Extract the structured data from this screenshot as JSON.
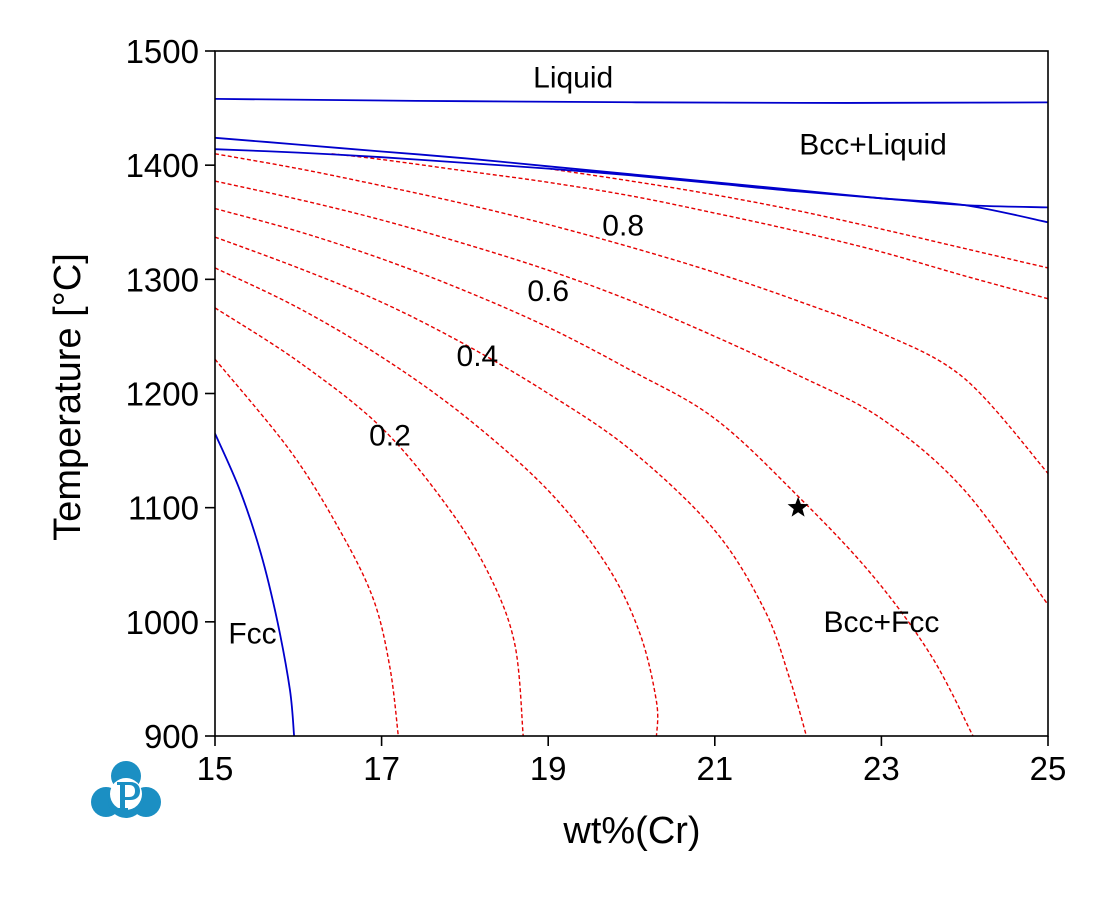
{
  "chart_data": {
    "type": "line",
    "title": "",
    "xlabel": "wt%(Cr)",
    "ylabel": "Temperature [°C]",
    "xlim": [
      15,
      25
    ],
    "ylim": [
      900,
      1500
    ],
    "x_ticks": [
      15,
      17,
      19,
      21,
      23,
      25
    ],
    "y_ticks": [
      900,
      1000,
      1100,
      1200,
      1300,
      1400,
      1500
    ],
    "grid": false,
    "legend": "none",
    "colors": {
      "phase_boundary": "#0000cc",
      "iso_fraction": "#e60000",
      "axes": "#000000"
    },
    "phase_boundaries": [
      {
        "id": "liquidus",
        "points": [
          [
            15,
            1458
          ],
          [
            18,
            1456
          ],
          [
            22,
            1454.5
          ],
          [
            25,
            1455
          ]
        ]
      },
      {
        "id": "solidus-upper",
        "points": [
          [
            15,
            1424
          ],
          [
            16,
            1418
          ],
          [
            17,
            1412
          ],
          [
            18,
            1406
          ],
          [
            19,
            1399
          ],
          [
            20,
            1392
          ],
          [
            21,
            1385
          ],
          [
            22,
            1378
          ],
          [
            23,
            1371
          ],
          [
            24,
            1365
          ],
          [
            25,
            1363
          ]
        ]
      },
      {
        "id": "solidus-lower",
        "points": [
          [
            15,
            1414
          ],
          [
            16,
            1411
          ],
          [
            17,
            1407
          ],
          [
            18,
            1402
          ],
          [
            19,
            1397
          ],
          [
            20,
            1391
          ],
          [
            21,
            1384
          ],
          [
            22,
            1377
          ],
          [
            23,
            1371
          ],
          [
            24,
            1365
          ],
          [
            25,
            1350
          ]
        ]
      },
      {
        "id": "fcc-boundary",
        "points": [
          [
            15,
            1165
          ],
          [
            15.3,
            1115
          ],
          [
            15.55,
            1060
          ],
          [
            15.75,
            1000
          ],
          [
            15.9,
            940
          ],
          [
            15.95,
            900
          ]
        ]
      }
    ],
    "contours": [
      {
        "points": [
          [
            15,
            1230
          ],
          [
            15.9,
            1150
          ],
          [
            16.5,
            1080
          ],
          [
            16.9,
            1020
          ],
          [
            17.1,
            960
          ],
          [
            17.2,
            900
          ]
        ]
      },
      {
        "points": [
          [
            15,
            1275
          ],
          [
            16,
            1228
          ],
          [
            17,
            1170
          ],
          [
            17.8,
            1100
          ],
          [
            18.3,
            1040
          ],
          [
            18.6,
            980
          ],
          [
            18.7,
            900
          ]
        ]
      },
      {
        "points": [
          [
            15,
            1310
          ],
          [
            16,
            1275
          ],
          [
            17,
            1232
          ],
          [
            18,
            1180
          ],
          [
            19,
            1115
          ],
          [
            19.7,
            1050
          ],
          [
            20.1,
            990
          ],
          [
            20.3,
            930
          ],
          [
            20.3,
            900
          ]
        ]
      },
      {
        "points": [
          [
            15,
            1337
          ],
          [
            16,
            1310
          ],
          [
            17,
            1280
          ],
          [
            18,
            1243
          ],
          [
            19,
            1200
          ],
          [
            20,
            1150
          ],
          [
            21,
            1080
          ],
          [
            21.6,
            1010
          ],
          [
            21.9,
            950
          ],
          [
            22.1,
            900
          ]
        ]
      },
      {
        "points": [
          [
            15,
            1362
          ],
          [
            16,
            1342
          ],
          [
            17,
            1318
          ],
          [
            18,
            1290
          ],
          [
            19,
            1258
          ],
          [
            20,
            1220
          ],
          [
            21,
            1178
          ],
          [
            22,
            1110
          ],
          [
            22.9,
            1040
          ],
          [
            23.6,
            970
          ],
          [
            24.1,
            900
          ]
        ]
      },
      {
        "points": [
          [
            15,
            1386
          ],
          [
            16,
            1370
          ],
          [
            17,
            1352
          ],
          [
            18,
            1331
          ],
          [
            19,
            1308
          ],
          [
            20,
            1281
          ],
          [
            21,
            1250
          ],
          [
            22,
            1216
          ],
          [
            23,
            1178
          ],
          [
            24,
            1115
          ],
          [
            25,
            1015
          ]
        ]
      },
      {
        "points": [
          [
            15,
            1410
          ],
          [
            16,
            1397
          ],
          [
            17,
            1382
          ],
          [
            18,
            1366
          ],
          [
            19,
            1348
          ],
          [
            20,
            1328
          ],
          [
            21,
            1306
          ],
          [
            22,
            1281
          ],
          [
            23,
            1253
          ],
          [
            24,
            1213
          ],
          [
            25,
            1130
          ]
        ]
      },
      {
        "points": [
          [
            16.4,
            1410
          ],
          [
            17,
            1405
          ],
          [
            18,
            1395
          ],
          [
            19,
            1385
          ],
          [
            20,
            1373
          ],
          [
            21,
            1358
          ],
          [
            22,
            1342
          ],
          [
            23,
            1324
          ],
          [
            24,
            1303
          ],
          [
            25,
            1283
          ]
        ]
      },
      {
        "points": [
          [
            19,
            1397
          ],
          [
            20,
            1386
          ],
          [
            21,
            1374
          ],
          [
            22,
            1360
          ],
          [
            23,
            1344
          ],
          [
            24,
            1327
          ],
          [
            25,
            1310
          ]
        ]
      }
    ],
    "contour_labels": [
      {
        "text": "0.2",
        "x": 17.1,
        "y": 1163
      },
      {
        "text": "0.4",
        "x": 18.15,
        "y": 1233
      },
      {
        "text": "0.6",
        "x": 19.0,
        "y": 1290
      },
      {
        "text": "0.8",
        "x": 19.9,
        "y": 1347
      }
    ],
    "region_labels": [
      {
        "text": "Liquid",
        "x": 19.3,
        "y": 1477
      },
      {
        "text": "Bcc+Liquid",
        "x": 22.9,
        "y": 1418
      },
      {
        "text": "Fcc",
        "x": 15.45,
        "y": 990
      },
      {
        "text": "Bcc+Fcc",
        "x": 23.0,
        "y": 1000
      }
    ],
    "marker": {
      "shape": "star",
      "x": 22.0,
      "y": 1100
    }
  }
}
